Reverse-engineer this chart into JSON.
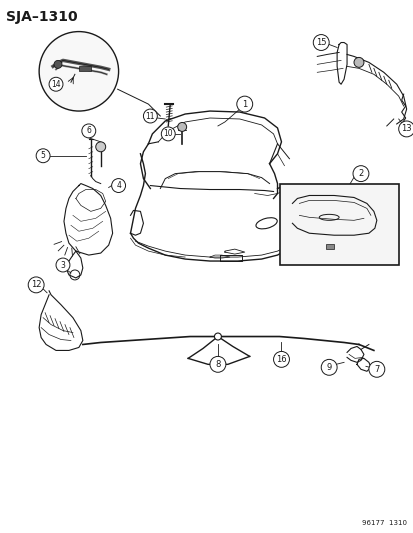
{
  "title": "SJA–1310",
  "footer": "96177  1310",
  "bg": "#ffffff",
  "lc": "#1a1a1a",
  "fig_w": 4.14,
  "fig_h": 5.33,
  "dpi": 100
}
